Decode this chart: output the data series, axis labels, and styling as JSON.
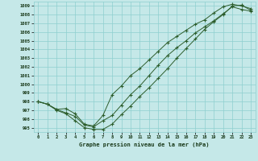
{
  "title": "Graphe pression niveau de la mer (hPa)",
  "bg_color": "#c5e8e8",
  "grid_color": "#8ecfcf",
  "line_color": "#2d5e2d",
  "ylim": [
    994.5,
    1009.5
  ],
  "yticks": [
    995,
    996,
    997,
    998,
    999,
    1000,
    1001,
    1002,
    1003,
    1004,
    1005,
    1006,
    1007,
    1008,
    1009
  ],
  "xlim": [
    -0.5,
    23.5
  ],
  "xticks": [
    0,
    1,
    2,
    3,
    4,
    5,
    6,
    7,
    8,
    9,
    10,
    11,
    12,
    13,
    14,
    15,
    16,
    17,
    18,
    19,
    20,
    21,
    22,
    23
  ],
  "series1": [
    998.0,
    997.7,
    997.1,
    997.2,
    996.6,
    995.4,
    995.2,
    996.4,
    998.8,
    999.8,
    1001.0,
    1001.8,
    1002.8,
    1003.8,
    1004.8,
    1005.5,
    1006.2,
    1006.9,
    1007.4,
    1008.2,
    1008.9,
    1009.2,
    1009.0,
    1008.7
  ],
  "series2": [
    998.0,
    997.7,
    997.1,
    996.7,
    996.3,
    995.3,
    995.1,
    995.8,
    996.4,
    997.6,
    998.8,
    999.8,
    1001.0,
    1002.2,
    1003.3,
    1004.2,
    1005.0,
    1005.9,
    1006.6,
    1007.3,
    1008.1,
    1008.9,
    1008.6,
    1008.4
  ],
  "series3": [
    998.0,
    997.7,
    997.0,
    996.6,
    995.8,
    995.0,
    994.8,
    994.8,
    995.4,
    996.5,
    997.5,
    998.6,
    999.6,
    1000.7,
    1001.8,
    1003.0,
    1004.1,
    1005.2,
    1006.3,
    1007.2,
    1008.0,
    1009.0,
    1009.1,
    1008.5
  ]
}
